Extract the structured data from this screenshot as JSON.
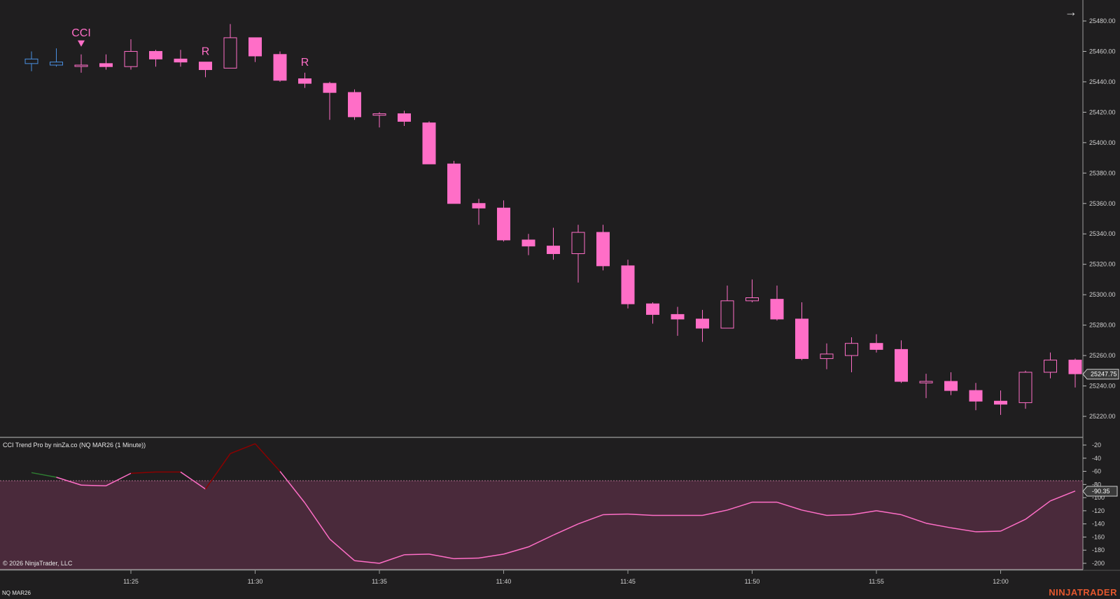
{
  "chart": {
    "instrument_label": "NQ MAR26",
    "navigate_icon": "arrow-right-icon",
    "brand": "NINJATRADER",
    "copyright": "© 2026 NinjaTrader, LLC",
    "indicator_title": "CCI Trend Pro by ninZa.co (NQ MAR26 (1 Minute))",
    "colors": {
      "background": "#1f1e1f",
      "bull_candle": "#ff6ec7",
      "bear_candle": "#ff6ec7",
      "neutral_candle": "#4a90e2",
      "cci_line": "#ff6ec7",
      "cci_early_red": "#8b0000",
      "cci_early_green": "#2e7d32",
      "oversold_zone": "#4a2a3b",
      "signal_text": "#ff6ec7",
      "brand": "#e4572e"
    }
  },
  "chart_data": [
    {
      "type": "candlestick",
      "title": "",
      "y_axis": {
        "ticks": [
          "25220.00",
          "25240.00",
          "25260.00",
          "25280.00",
          "25300.00",
          "25320.00",
          "25340.00",
          "25360.00",
          "25380.00",
          "25400.00",
          "25420.00",
          "25440.00",
          "25460.00",
          "25480.00"
        ],
        "range": [
          25205,
          25487
        ]
      },
      "x_axis": {
        "ticks": [
          "11:25",
          "11:30",
          "11:35",
          "11:40",
          "11:45",
          "11:50",
          "11:55",
          "12:00"
        ]
      },
      "current_price": "25247.75",
      "signals": [
        {
          "bar": 2,
          "label": "CCI",
          "marker": "down-triangle"
        },
        {
          "bar": 7,
          "label": "R"
        },
        {
          "bar": 11,
          "label": "R"
        }
      ],
      "candles": [
        {
          "o": 25455,
          "h": 25460,
          "l": 25447,
          "c": 25452,
          "style": "neutral"
        },
        {
          "o": 25453,
          "h": 25462,
          "l": 25450,
          "c": 25451,
          "style": "neutral"
        },
        {
          "o": 25451,
          "h": 25458,
          "l": 25446,
          "c": 25451,
          "style": "doji"
        },
        {
          "o": 25452,
          "h": 25458,
          "l": 25448,
          "c": 25450,
          "style": "bear"
        },
        {
          "o": 25450,
          "h": 25468,
          "l": 25448,
          "c": 25460,
          "style": "bull"
        },
        {
          "o": 25460,
          "h": 25461,
          "l": 25450,
          "c": 25455,
          "style": "bear"
        },
        {
          "o": 25455,
          "h": 25461,
          "l": 25450,
          "c": 25453,
          "style": "bear"
        },
        {
          "o": 25453,
          "h": 25453,
          "l": 25443,
          "c": 25448,
          "style": "bear"
        },
        {
          "o": 25449,
          "h": 25478,
          "l": 25449,
          "c": 25469,
          "style": "bull"
        },
        {
          "o": 25469,
          "h": 25469,
          "l": 25453,
          "c": 25457,
          "style": "bear"
        },
        {
          "o": 25458,
          "h": 25460,
          "l": 25440,
          "c": 25441,
          "style": "bear"
        },
        {
          "o": 25442,
          "h": 25446,
          "l": 25436,
          "c": 25439,
          "style": "bear"
        },
        {
          "o": 25439,
          "h": 25440,
          "l": 25415,
          "c": 25433,
          "style": "bear"
        },
        {
          "o": 25433,
          "h": 25435,
          "l": 25415,
          "c": 25417,
          "style": "bear"
        },
        {
          "o": 25418,
          "h": 25420,
          "l": 25410,
          "c": 25419,
          "style": "doji"
        },
        {
          "o": 25419,
          "h": 25421,
          "l": 25411,
          "c": 25414,
          "style": "bear"
        },
        {
          "o": 25413,
          "h": 25414,
          "l": 25387,
          "c": 25386,
          "style": "bear"
        },
        {
          "o": 25386,
          "h": 25388,
          "l": 25360,
          "c": 25360,
          "style": "bear"
        },
        {
          "o": 25360,
          "h": 25363,
          "l": 25346,
          "c": 25357,
          "style": "bear"
        },
        {
          "o": 25357,
          "h": 25362,
          "l": 25335,
          "c": 25336,
          "style": "bear"
        },
        {
          "o": 25336,
          "h": 25340,
          "l": 25326,
          "c": 25332,
          "style": "bear"
        },
        {
          "o": 25332,
          "h": 25344,
          "l": 25323,
          "c": 25327,
          "style": "bear"
        },
        {
          "o": 25327,
          "h": 25346,
          "l": 25308,
          "c": 25341,
          "style": "bull"
        },
        {
          "o": 25341,
          "h": 25346,
          "l": 25316,
          "c": 25319,
          "style": "bear"
        },
        {
          "o": 25319,
          "h": 25323,
          "l": 25291,
          "c": 25294,
          "style": "bear"
        },
        {
          "o": 25294,
          "h": 25295,
          "l": 25281,
          "c": 25287,
          "style": "bear"
        },
        {
          "o": 25287,
          "h": 25292,
          "l": 25273,
          "c": 25284,
          "style": "bear"
        },
        {
          "o": 25284,
          "h": 25290,
          "l": 25269,
          "c": 25278,
          "style": "bear"
        },
        {
          "o": 25278,
          "h": 25306,
          "l": 25278,
          "c": 25296,
          "style": "bull"
        },
        {
          "o": 25296,
          "h": 25310,
          "l": 25295,
          "c": 25298,
          "style": "doji"
        },
        {
          "o": 25297,
          "h": 25306,
          "l": 25283,
          "c": 25284,
          "style": "bear"
        },
        {
          "o": 25284,
          "h": 25295,
          "l": 25257,
          "c": 25258,
          "style": "bear"
        },
        {
          "o": 25258,
          "h": 25268,
          "l": 25251,
          "c": 25261,
          "style": "bull"
        },
        {
          "o": 25260,
          "h": 25272,
          "l": 25249,
          "c": 25268,
          "style": "bull"
        },
        {
          "o": 25268,
          "h": 25274,
          "l": 25262,
          "c": 25264,
          "style": "bear"
        },
        {
          "o": 25264,
          "h": 25270,
          "l": 25242,
          "c": 25243,
          "style": "bear"
        },
        {
          "o": 25243,
          "h": 25248,
          "l": 25232,
          "c": 25242,
          "style": "doji"
        },
        {
          "o": 25243,
          "h": 25249,
          "l": 25234,
          "c": 25237,
          "style": "bear"
        },
        {
          "o": 25237,
          "h": 25242,
          "l": 25224,
          "c": 25230,
          "style": "bear"
        },
        {
          "o": 25230,
          "h": 25237,
          "l": 25221,
          "c": 25228,
          "style": "bear"
        },
        {
          "o": 25229,
          "h": 25250,
          "l": 25225,
          "c": 25249,
          "style": "bull"
        },
        {
          "o": 25249,
          "h": 25262,
          "l": 25245,
          "c": 25257,
          "style": "bull"
        },
        {
          "o": 25257,
          "h": 25258,
          "l": 25239,
          "c": 25248,
          "style": "bear"
        }
      ]
    },
    {
      "type": "line",
      "title": "CCI Trend Pro by ninZa.co (NQ MAR26 (1 Minute))",
      "y_axis": {
        "ticks": [
          "-20",
          "-40",
          "-60",
          "-80",
          "-100",
          "-120",
          "-140",
          "-160",
          "-180",
          "-200"
        ],
        "range": [
          -209,
          -11
        ]
      },
      "current_value": "-90.35",
      "oversold_level": -76,
      "values": [
        -62,
        -69,
        -81,
        -82,
        -63,
        -61,
        -61,
        -87,
        -33,
        -18,
        -60,
        -108,
        -163,
        -196,
        -200,
        -187,
        -186,
        -193,
        -192,
        -186,
        -175,
        -157,
        -140,
        -126,
        -125,
        -127,
        -127,
        -127,
        -119,
        -107,
        -107,
        -119,
        -127,
        -126,
        -120,
        -126,
        -139,
        -146,
        -152,
        -151,
        -133,
        -105,
        -90
      ],
      "segment_colors": [
        "green",
        "pink",
        "pink",
        "pink",
        "red",
        "red",
        "pink",
        "red",
        "red",
        "red",
        "pink",
        "pink",
        "pink",
        "pink",
        "pink",
        "pink",
        "pink",
        "pink",
        "pink",
        "pink",
        "pink",
        "pink",
        "pink",
        "pink",
        "pink",
        "pink",
        "pink",
        "pink",
        "pink",
        "pink",
        "pink",
        "pink",
        "pink",
        "pink",
        "pink",
        "pink",
        "pink",
        "pink",
        "pink",
        "pink",
        "pink",
        "pink"
      ]
    }
  ]
}
